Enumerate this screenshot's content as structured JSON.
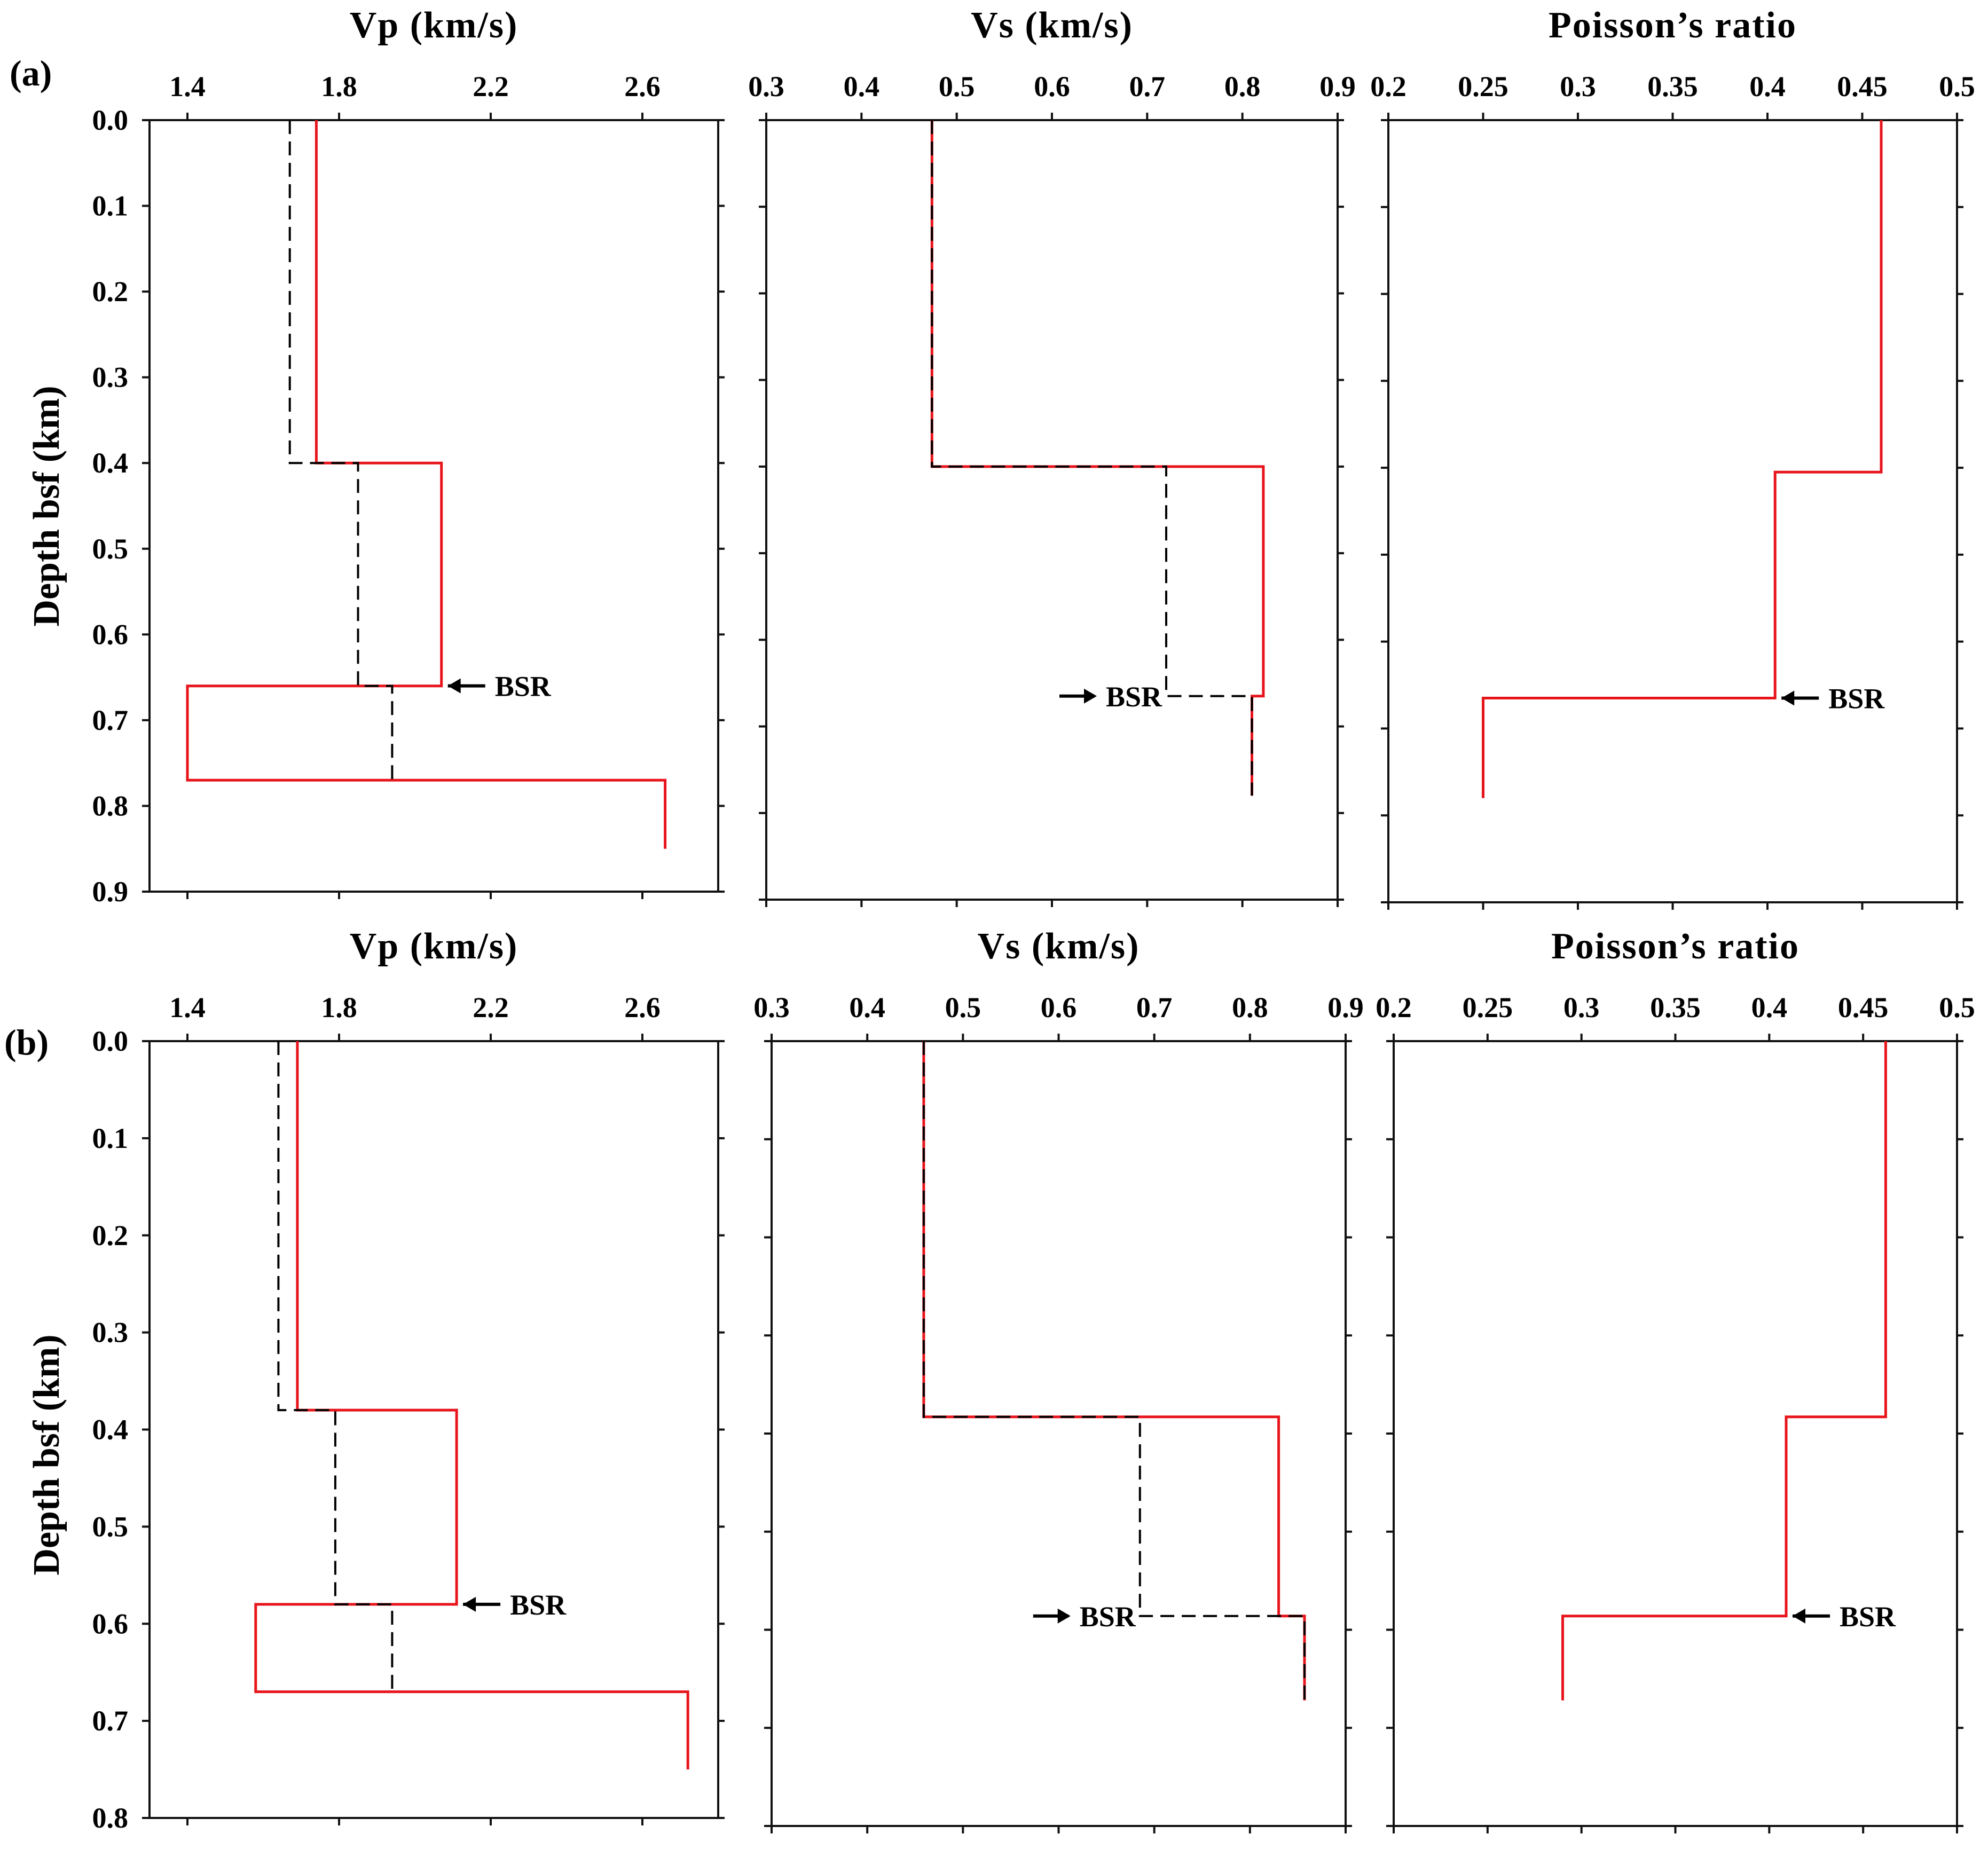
{
  "figure": {
    "panel_labels": [
      "(a)",
      "(b)"
    ],
    "ylabel": "Depth bsf (km)",
    "bsr_label": "BSR",
    "colors": {
      "model": "#e8141b",
      "reference": "#000000",
      "axes": "#111111"
    }
  },
  "chart_data": [
    {
      "id": "a-vp",
      "type": "line",
      "title": "Vp (km/s)",
      "ylabel": "Depth bsf (km)",
      "xlim": [
        1.3,
        2.8
      ],
      "ylim": [
        0,
        0.9
      ],
      "xticks": [
        1.4,
        1.8,
        2.2,
        2.6
      ],
      "xticklabels": [
        "1.4",
        "1.8",
        "2.2",
        "2.6"
      ],
      "yticks": [
        0,
        0.1,
        0.2,
        0.3,
        0.4,
        0.5,
        0.6,
        0.7,
        0.8,
        0.9
      ],
      "yticklabels": [
        "0.0",
        "0.1",
        "0.2",
        "0.3",
        "0.4",
        "0.5",
        "0.6",
        "0.7",
        "0.8",
        "0.9"
      ],
      "series": [
        {
          "name": "model",
          "style": "solid",
          "color": "#e8141b",
          "points": [
            [
              1.74,
              0
            ],
            [
              1.74,
              0.4
            ],
            [
              2.07,
              0.4
            ],
            [
              2.07,
              0.66
            ],
            [
              1.4,
              0.66
            ],
            [
              1.4,
              0.77
            ],
            [
              2.66,
              0.77
            ],
            [
              2.66,
              0.85
            ]
          ]
        },
        {
          "name": "reference",
          "style": "dashed",
          "color": "#000000",
          "points": [
            [
              1.67,
              0
            ],
            [
              1.67,
              0.4
            ],
            [
              1.85,
              0.4
            ],
            [
              1.85,
              0.66
            ],
            [
              1.94,
              0.66
            ],
            [
              1.94,
              0.77
            ]
          ]
        }
      ],
      "annotation": {
        "text": "BSR",
        "arrow": "left",
        "x": 2.07,
        "y": 0.66
      }
    },
    {
      "id": "a-vs",
      "type": "line",
      "title": "Vs (km/s)",
      "xlim": [
        0.3,
        0.9
      ],
      "ylim": [
        0,
        0.9
      ],
      "xticks": [
        0.3,
        0.4,
        0.5,
        0.6,
        0.7,
        0.8,
        0.9
      ],
      "xticklabels": [
        "0.3",
        "0.4",
        "0.5",
        "0.6",
        "0.7",
        "0.8",
        "0.9"
      ],
      "yticks": [
        0,
        0.1,
        0.2,
        0.3,
        0.4,
        0.5,
        0.6,
        0.7,
        0.8,
        0.9
      ],
      "series": [
        {
          "name": "model",
          "style": "solid",
          "color": "#e8141b",
          "points": [
            [
              0.474,
              0
            ],
            [
              0.474,
              0.4
            ],
            [
              0.822,
              0.4
            ],
            [
              0.822,
              0.665
            ],
            [
              0.81,
              0.665
            ],
            [
              0.81,
              0.78
            ]
          ]
        },
        {
          "name": "reference",
          "style": "dashed",
          "color": "#000000",
          "points": [
            [
              0.474,
              0
            ],
            [
              0.474,
              0.4
            ],
            [
              0.72,
              0.4
            ],
            [
              0.72,
              0.665
            ],
            [
              0.81,
              0.665
            ],
            [
              0.81,
              0.78
            ]
          ]
        }
      ],
      "annotation": {
        "text": "BSR",
        "arrow": "right",
        "x": 0.72,
        "y": 0.665
      }
    },
    {
      "id": "a-pr",
      "type": "line",
      "title": "Poisson’s ratio",
      "xlim": [
        0.2,
        0.5
      ],
      "ylim": [
        0,
        0.9
      ],
      "xticks": [
        0.2,
        0.25,
        0.3,
        0.35,
        0.4,
        0.45,
        0.5
      ],
      "xticklabels": [
        "0.2",
        "0.25",
        "0.3",
        "0.35",
        "0.4",
        "0.45",
        "0.5"
      ],
      "yticks": [
        0,
        0.1,
        0.2,
        0.3,
        0.4,
        0.5,
        0.6,
        0.7,
        0.8,
        0.9
      ],
      "series": [
        {
          "name": "model",
          "style": "solid",
          "color": "#e8141b",
          "points": [
            [
              0.46,
              0
            ],
            [
              0.46,
              0.405
            ],
            [
              0.404,
              0.405
            ],
            [
              0.404,
              0.665
            ],
            [
              0.25,
              0.665
            ],
            [
              0.25,
              0.78
            ]
          ]
        }
      ],
      "annotation": {
        "text": "BSR",
        "arrow": "left",
        "x": 0.404,
        "y": 0.665
      }
    },
    {
      "id": "b-vp",
      "type": "line",
      "title": "Vp (km/s)",
      "ylabel": "Depth bsf (km)",
      "xlim": [
        1.3,
        2.8
      ],
      "ylim": [
        0,
        0.8
      ],
      "xticks": [
        1.4,
        1.8,
        2.2,
        2.6
      ],
      "xticklabels": [
        "1.4",
        "1.8",
        "2.2",
        "2.6"
      ],
      "yticks": [
        0,
        0.1,
        0.2,
        0.3,
        0.4,
        0.5,
        0.6,
        0.7,
        0.8
      ],
      "yticklabels": [
        "0.0",
        "0.1",
        "0.2",
        "0.3",
        "0.4",
        "0.5",
        "0.6",
        "0.7",
        "0.8"
      ],
      "series": [
        {
          "name": "model",
          "style": "solid",
          "color": "#e8141b",
          "points": [
            [
              1.69,
              0
            ],
            [
              1.69,
              0.38
            ],
            [
              2.11,
              0.38
            ],
            [
              2.11,
              0.58
            ],
            [
              1.58,
              0.58
            ],
            [
              1.58,
              0.67
            ],
            [
              2.72,
              0.67
            ],
            [
              2.72,
              0.75
            ]
          ]
        },
        {
          "name": "reference",
          "style": "dashed",
          "color": "#000000",
          "points": [
            [
              1.64,
              0
            ],
            [
              1.64,
              0.38
            ],
            [
              1.79,
              0.38
            ],
            [
              1.79,
              0.58
            ],
            [
              1.94,
              0.58
            ],
            [
              1.94,
              0.67
            ]
          ]
        }
      ],
      "annotation": {
        "text": "BSR",
        "arrow": "left",
        "x": 2.11,
        "y": 0.58
      }
    },
    {
      "id": "b-vs",
      "type": "line",
      "title": "Vs (km/s)",
      "xlim": [
        0.3,
        0.9
      ],
      "ylim": [
        0,
        0.8
      ],
      "xticks": [
        0.3,
        0.4,
        0.5,
        0.6,
        0.7,
        0.8,
        0.9
      ],
      "xticklabels": [
        "0.3",
        "0.4",
        "0.5",
        "0.6",
        "0.7",
        "0.8",
        "0.9"
      ],
      "yticks": [
        0,
        0.1,
        0.2,
        0.3,
        0.4,
        0.5,
        0.6,
        0.7,
        0.8
      ],
      "series": [
        {
          "name": "model",
          "style": "solid",
          "color": "#e8141b",
          "points": [
            [
              0.459,
              0
            ],
            [
              0.459,
              0.383
            ],
            [
              0.83,
              0.383
            ],
            [
              0.83,
              0.586
            ],
            [
              0.857,
              0.586
            ],
            [
              0.857,
              0.672
            ]
          ]
        },
        {
          "name": "reference",
          "style": "dashed",
          "color": "#000000",
          "points": [
            [
              0.459,
              0
            ],
            [
              0.459,
              0.383
            ],
            [
              0.685,
              0.383
            ],
            [
              0.685,
              0.586
            ],
            [
              0.857,
              0.586
            ],
            [
              0.857,
              0.672
            ]
          ]
        }
      ],
      "annotation": {
        "text": "BSR",
        "arrow": "right",
        "x": 0.685,
        "y": 0.586
      }
    },
    {
      "id": "b-pr",
      "type": "line",
      "title": "Poisson’s ratio",
      "xlim": [
        0.2,
        0.5
      ],
      "ylim": [
        0,
        0.8
      ],
      "xticks": [
        0.2,
        0.25,
        0.3,
        0.35,
        0.4,
        0.45,
        0.5
      ],
      "xticklabels": [
        "0.2",
        "0.25",
        "0.3",
        "0.35",
        "0.4",
        "0.45",
        "0.5"
      ],
      "yticks": [
        0,
        0.1,
        0.2,
        0.3,
        0.4,
        0.5,
        0.6,
        0.7,
        0.8
      ],
      "series": [
        {
          "name": "model",
          "style": "solid",
          "color": "#e8141b",
          "points": [
            [
              0.462,
              0
            ],
            [
              0.462,
              0.383
            ],
            [
              0.409,
              0.383
            ],
            [
              0.409,
              0.586
            ],
            [
              0.29,
              0.586
            ],
            [
              0.29,
              0.672
            ]
          ]
        }
      ],
      "annotation": {
        "text": "BSR",
        "arrow": "left",
        "x": 0.409,
        "y": 0.586
      }
    }
  ]
}
